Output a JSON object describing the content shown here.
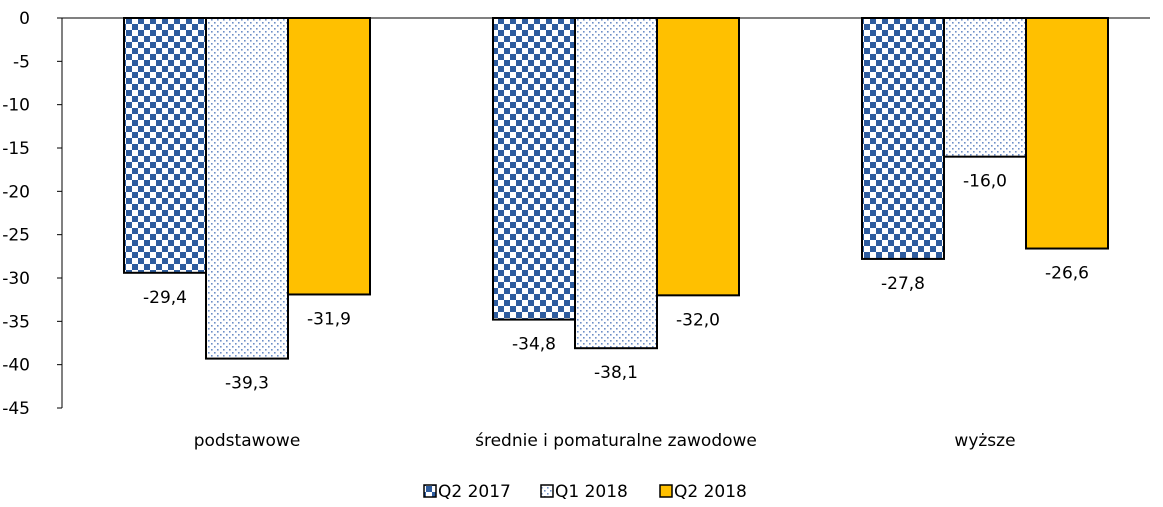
{
  "chart_data": {
    "type": "bar",
    "categories": [
      "podstawowe",
      "średnie i pomaturalne zawodowe",
      "wyższe"
    ],
    "series": [
      {
        "name": "Q2 2017",
        "values": [
          -29.4,
          -34.8,
          -27.8
        ],
        "labels": [
          "-29,4",
          "-34,8",
          "-27,8"
        ],
        "pattern": "checker",
        "color": "#2E5C9E"
      },
      {
        "name": "Q1 2018",
        "values": [
          -39.3,
          -38.1,
          -16.0
        ],
        "labels": [
          "-39,3",
          "-38,1",
          "-16,0"
        ],
        "pattern": "dots",
        "color": "#6E8FC7"
      },
      {
        "name": "Q2 2018",
        "values": [
          -31.9,
          -32.0,
          -26.6
        ],
        "labels": [
          "-31,9",
          "-32,0",
          "-26,6"
        ],
        "pattern": "solid",
        "color": "#FFC000"
      }
    ],
    "ylim": [
      -45,
      0
    ],
    "yticks": [
      "0",
      "-5",
      "-10",
      "-15",
      "-20",
      "-25",
      "-30",
      "-35",
      "-40",
      "-45"
    ],
    "legend_position": "bottom",
    "grid": false
  }
}
